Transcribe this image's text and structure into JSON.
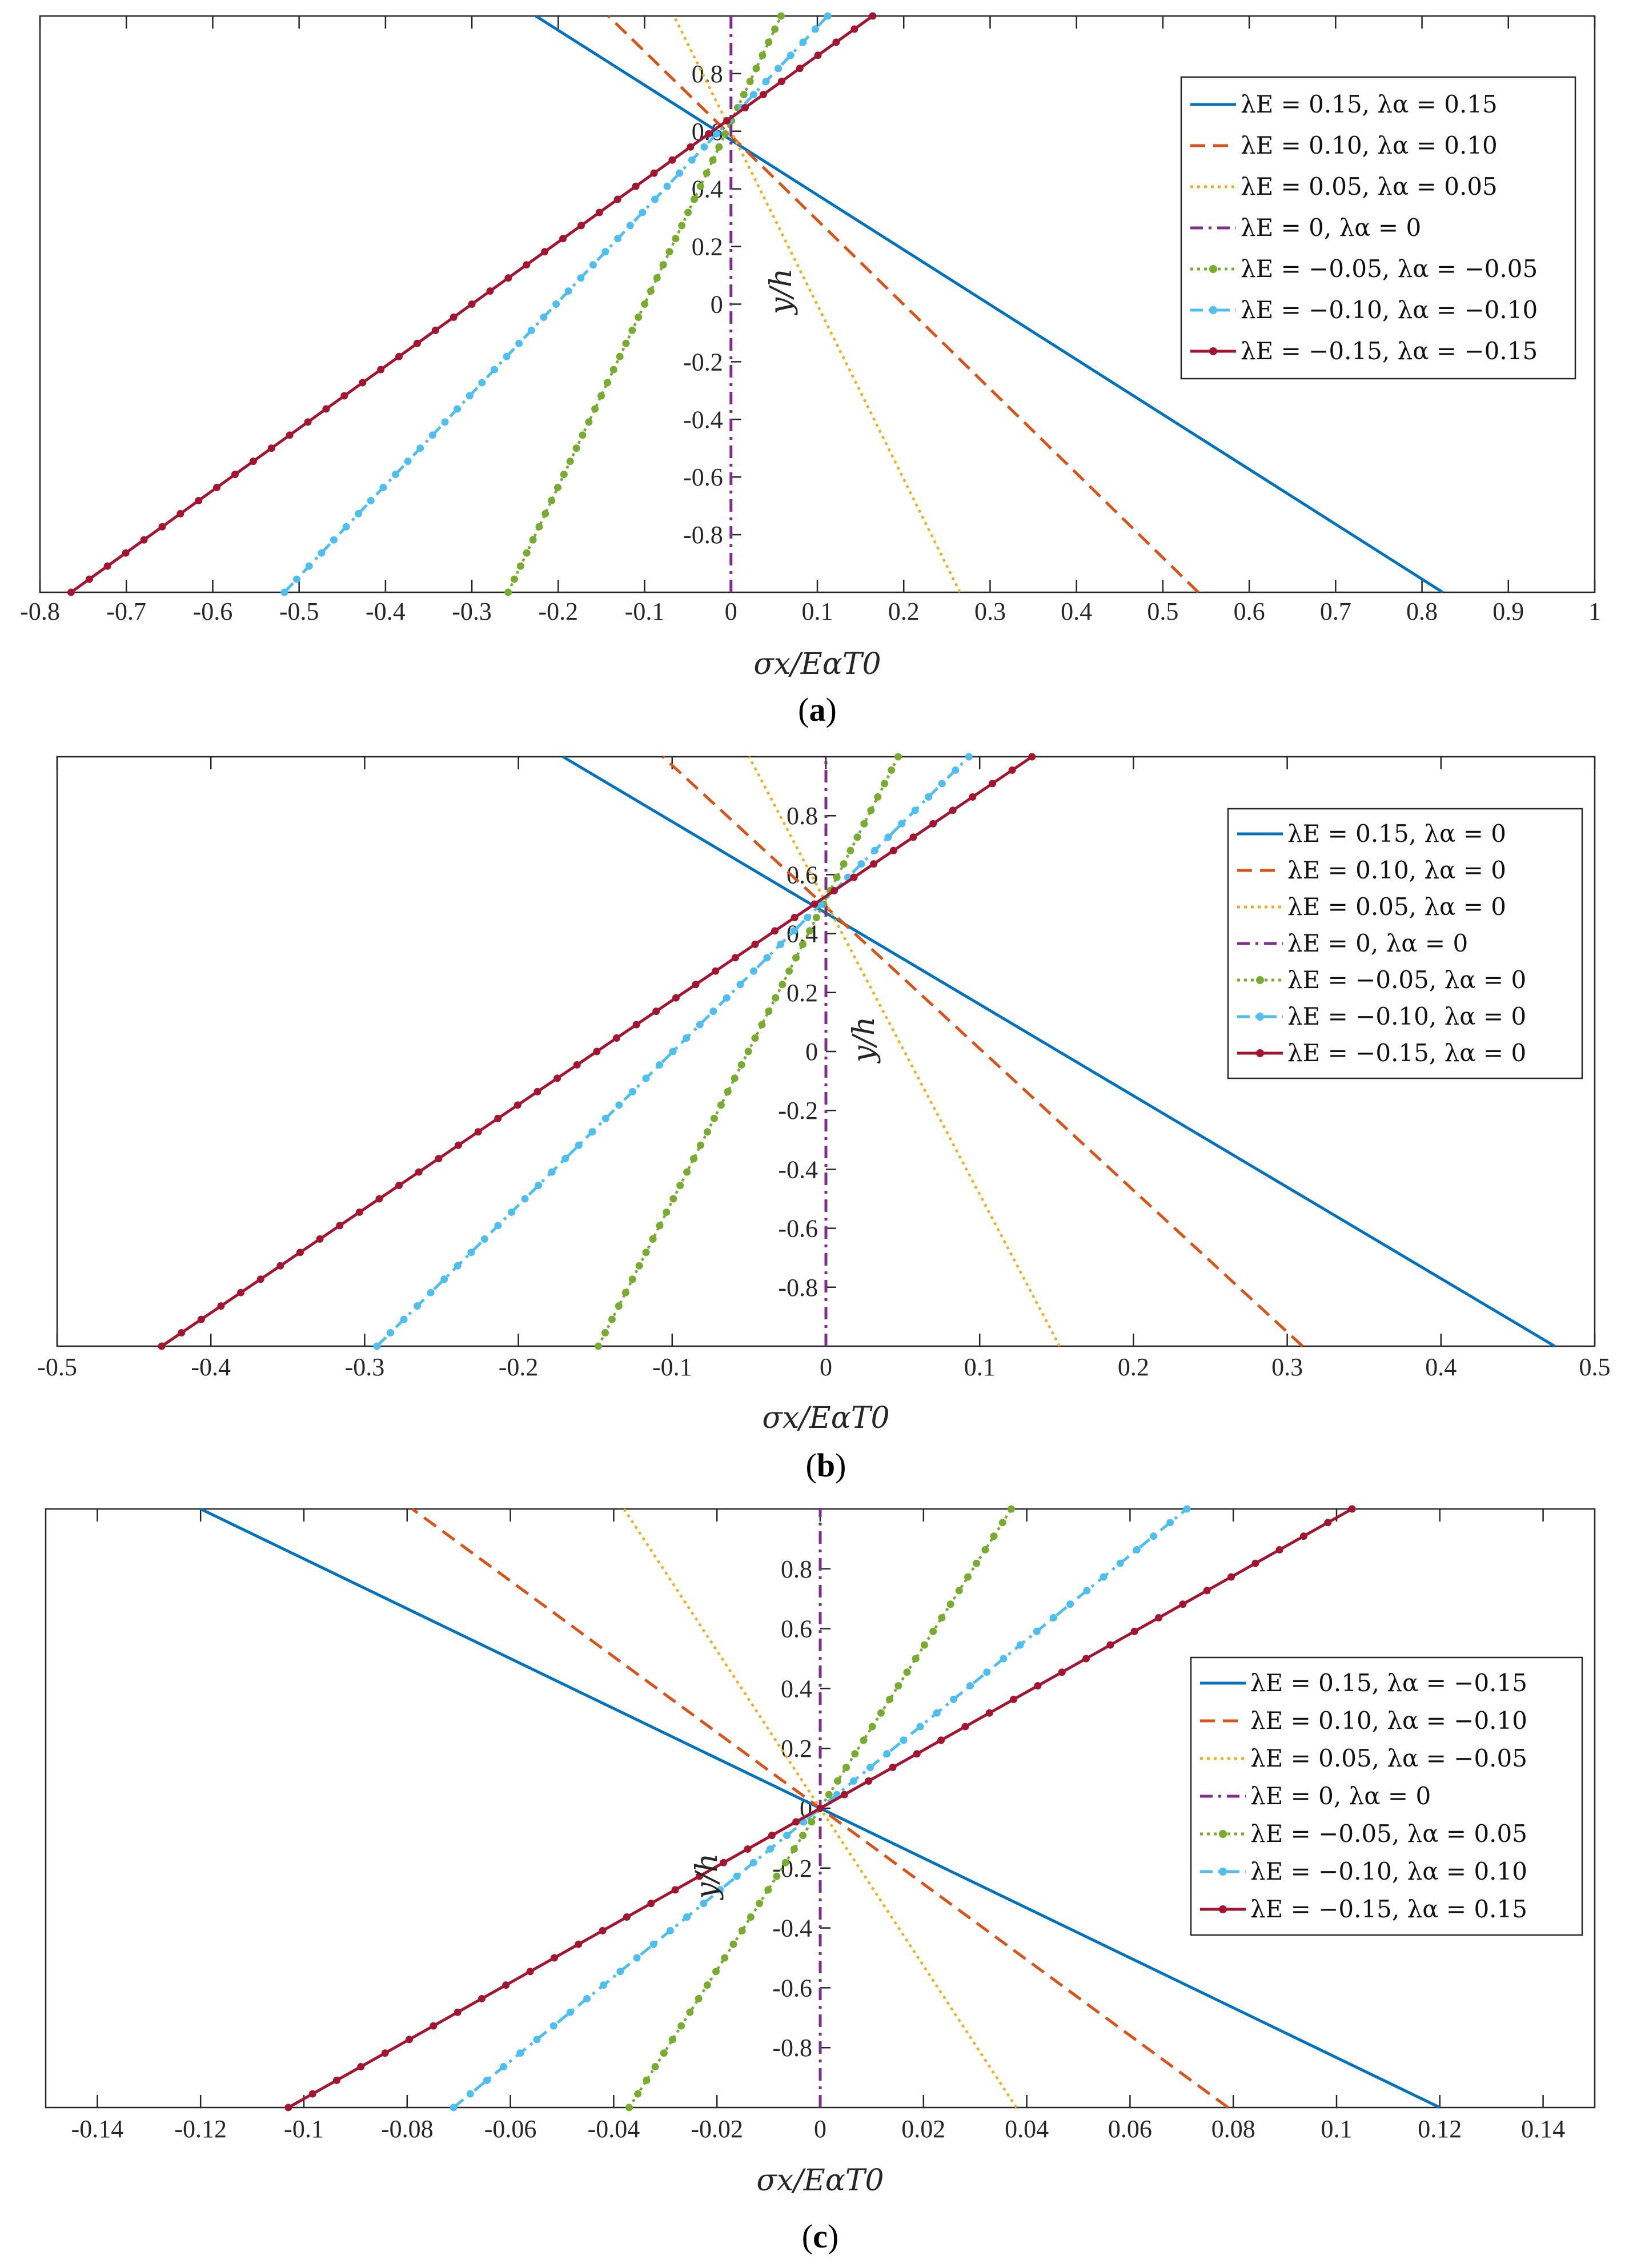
{
  "chart_data": [
    {
      "type": "line",
      "panel": "a",
      "caption": {
        "open": "(",
        "letter": "a",
        "close": ")"
      },
      "xlabel": "σx/EαT0",
      "ylabel": "y/h",
      "xlim": [
        -0.8,
        1.0
      ],
      "ylim": [
        -1,
        1
      ],
      "xticks": [
        -0.8,
        -0.7,
        -0.6,
        -0.5,
        -0.4,
        -0.3,
        -0.2,
        -0.1,
        0,
        0.1,
        0.2,
        0.3,
        0.4,
        0.5,
        0.6,
        0.7,
        0.8,
        0.9,
        1
      ],
      "yticks": [
        -0.8,
        -0.6,
        -0.4,
        -0.2,
        0,
        0.2,
        0.4,
        0.6,
        0.8
      ],
      "legend_position": "top-right",
      "series": [
        {
          "name": "λE = 0.15, λα = 0.15",
          "color": "#0072BD",
          "style": "solid",
          "marker": "none",
          "x": [
            0.824,
            -0.226
          ],
          "y": [
            -1,
            1
          ]
        },
        {
          "name": "λE = 0.10, λα = 0.10",
          "color": "#D95319",
          "style": "dashed",
          "marker": "none",
          "x": [
            0.541,
            -0.142
          ],
          "y": [
            -1,
            1
          ]
        },
        {
          "name": "λE = 0.05, λα = 0.05",
          "color": "#EDB120",
          "style": "dotted",
          "marker": "none",
          "x": [
            0.265,
            -0.066
          ],
          "y": [
            -1,
            1
          ]
        },
        {
          "name": "λE = 0, λα = 0",
          "color": "#7E2F8E",
          "style": "dashdot",
          "marker": "none",
          "x": [
            0,
            0
          ],
          "y": [
            -1,
            1
          ]
        },
        {
          "name": "λE = −0.05, λα = −0.05",
          "color": "#77AC30",
          "style": "dotted",
          "marker": "dot",
          "x": [
            -0.258,
            0.058
          ],
          "y": [
            -1,
            1
          ]
        },
        {
          "name": "λE = −0.10, λα = −0.10",
          "color": "#4DBEEE",
          "style": "dashdot",
          "marker": "dot",
          "x": [
            -0.517,
            0.112
          ],
          "y": [
            -1,
            1
          ]
        },
        {
          "name": "λE = −0.15, λα = −0.15",
          "color": "#A2142F",
          "style": "solid",
          "marker": "dot",
          "x": [
            -0.764,
            0.164
          ],
          "y": [
            -1,
            1
          ]
        }
      ]
    },
    {
      "type": "line",
      "panel": "b",
      "caption": {
        "open": "(",
        "letter": "b",
        "close": ")"
      },
      "xlabel": "σx/EαT0",
      "ylabel": "y/h",
      "xlim": [
        -0.5,
        0.5
      ],
      "ylim": [
        -1,
        1
      ],
      "xticks": [
        -0.5,
        -0.4,
        -0.3,
        -0.2,
        -0.1,
        0,
        0.1,
        0.2,
        0.3,
        0.4,
        0.5
      ],
      "yticks": [
        -0.8,
        -0.6,
        -0.4,
        -0.2,
        0,
        0.2,
        0.4,
        0.6,
        0.8
      ],
      "legend_position": "top-right",
      "series": [
        {
          "name": "λE = 0.15, λα = 0",
          "color": "#0072BD",
          "style": "solid",
          "marker": "none",
          "x": [
            0.474,
            -0.171
          ],
          "y": [
            -1,
            1
          ]
        },
        {
          "name": "λE = 0.10, λα = 0",
          "color": "#D95319",
          "style": "dashed",
          "marker": "none",
          "x": [
            0.31,
            -0.106
          ],
          "y": [
            -1,
            1
          ]
        },
        {
          "name": "λE = 0.05, λα = 0",
          "color": "#EDB120",
          "style": "dotted",
          "marker": "none",
          "x": [
            0.152,
            -0.05
          ],
          "y": [
            -1,
            1
          ]
        },
        {
          "name": "λE = 0, λα = 0",
          "color": "#7E2F8E",
          "style": "dashdot",
          "marker": "none",
          "x": [
            0,
            0
          ],
          "y": [
            -1,
            1
          ]
        },
        {
          "name": "λE = −0.05, λα = 0",
          "color": "#77AC30",
          "style": "dotted",
          "marker": "dot",
          "x": [
            -0.148,
            0.047
          ],
          "y": [
            -1,
            1
          ]
        },
        {
          "name": "λE = −0.10, λα = 0",
          "color": "#4DBEEE",
          "style": "dashdot",
          "marker": "dot",
          "x": [
            -0.292,
            0.093
          ],
          "y": [
            -1,
            1
          ]
        },
        {
          "name": "λE = −0.15, λα = 0",
          "color": "#A2142F",
          "style": "solid",
          "marker": "dot",
          "x": [
            -0.432,
            0.134
          ],
          "y": [
            -1,
            1
          ]
        }
      ]
    },
    {
      "type": "line",
      "panel": "c",
      "caption": {
        "open": "(",
        "letter": "c",
        "close": ")"
      },
      "xlabel": "σx/EαT0",
      "ylabel": "y/h",
      "xlim": [
        -0.15,
        0.15
      ],
      "ylim": [
        -1,
        1
      ],
      "xticks": [
        -0.14,
        -0.12,
        -0.1,
        -0.08,
        -0.06,
        -0.04,
        -0.02,
        0,
        0.02,
        0.04,
        0.06,
        0.08,
        0.1,
        0.12,
        0.14
      ],
      "yticks": [
        -0.8,
        -0.6,
        -0.4,
        -0.2,
        0,
        0.2,
        0.4,
        0.6,
        0.8
      ],
      "legend_position": "right",
      "series": [
        {
          "name": "λE = 0.15, λα = −0.15",
          "color": "#0072BD",
          "style": "solid",
          "marker": "none",
          "x": [
            0.12,
            -0.12
          ],
          "y": [
            -1,
            1
          ]
        },
        {
          "name": "λE = 0.10, λα = −0.10",
          "color": "#D95319",
          "style": "dashed",
          "marker": "none",
          "x": [
            0.079,
            -0.079
          ],
          "y": [
            -1,
            1
          ]
        },
        {
          "name": "λE = 0.05, λα = −0.05",
          "color": "#EDB120",
          "style": "dotted",
          "marker": "none",
          "x": [
            0.038,
            -0.038
          ],
          "y": [
            -1,
            1
          ]
        },
        {
          "name": "λE = 0, λα = 0",
          "color": "#7E2F8E",
          "style": "dashdot",
          "marker": "none",
          "x": [
            0,
            0
          ],
          "y": [
            -1,
            1
          ]
        },
        {
          "name": "λE = −0.05, λα = 0.05",
          "color": "#77AC30",
          "style": "dotted",
          "marker": "dot",
          "x": [
            -0.037,
            0.037
          ],
          "y": [
            -1,
            1
          ]
        },
        {
          "name": "λE = −0.10, λα = 0.10",
          "color": "#4DBEEE",
          "style": "dashdot",
          "marker": "dot",
          "x": [
            -0.071,
            0.071
          ],
          "y": [
            -1,
            1
          ]
        },
        {
          "name": "λE = −0.15, λα = 0.15",
          "color": "#A2142F",
          "style": "solid",
          "marker": "dot",
          "x": [
            -0.103,
            0.103
          ],
          "y": [
            -1,
            1
          ]
        }
      ]
    }
  ]
}
